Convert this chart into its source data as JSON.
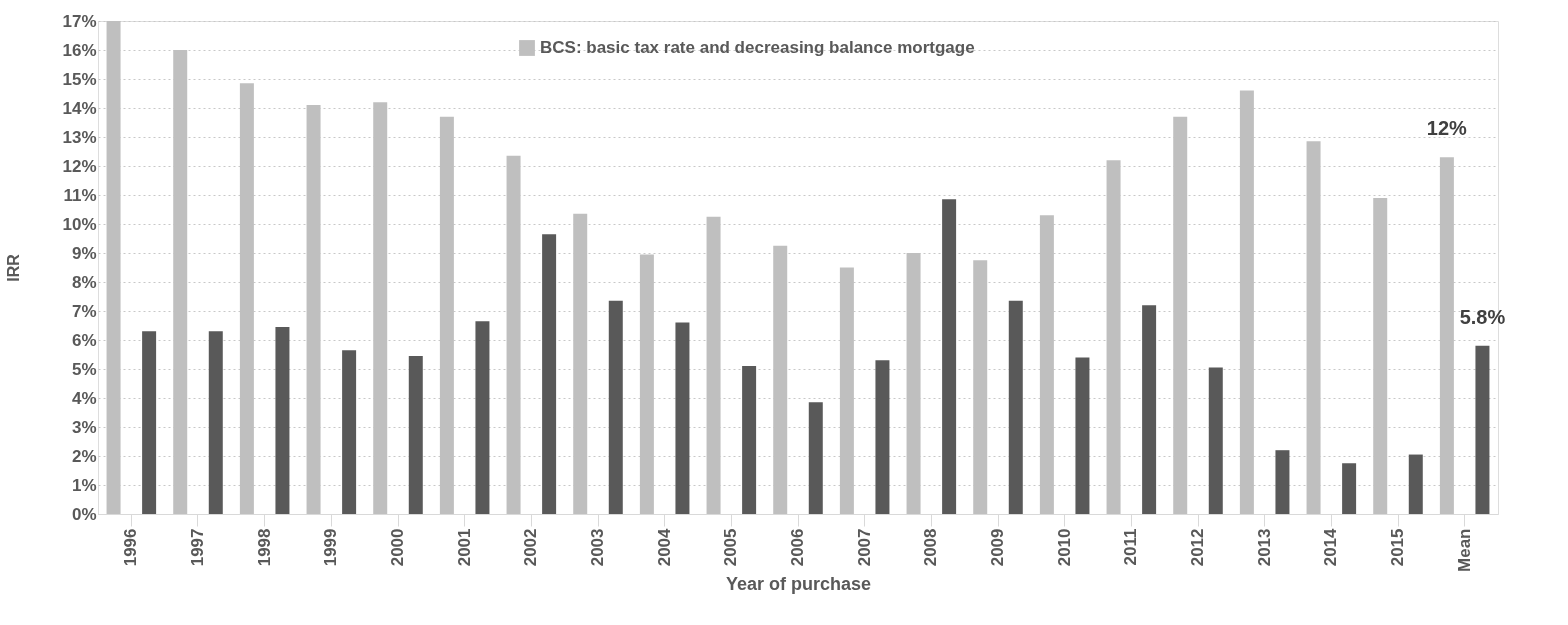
{
  "chart_data": {
    "type": "bar",
    "xlabel": "Year of purchase",
    "ylabel": "IRR",
    "categories": [
      "1996",
      "1997",
      "1998",
      "1999",
      "2000",
      "2001",
      "2002",
      "2003",
      "2004",
      "2005",
      "2006",
      "2007",
      "2008",
      "2009",
      "2010",
      "2011",
      "2012",
      "2013",
      "2014",
      "2015",
      "Mean"
    ],
    "series": [
      {
        "name": "BCS: basic tax rate and decreasing balance mortgage",
        "color": "#bfbfbf",
        "values": [
          17.0,
          16.0,
          14.85,
          14.1,
          14.2,
          13.7,
          12.35,
          10.35,
          8.95,
          10.25,
          9.25,
          8.5,
          9.0,
          8.75,
          10.3,
          12.2,
          13.7,
          14.6,
          12.85,
          10.9,
          12.3
        ],
        "value_labels": [
          null,
          null,
          null,
          null,
          null,
          null,
          null,
          null,
          null,
          null,
          null,
          null,
          null,
          null,
          null,
          null,
          null,
          null,
          null,
          null,
          "12%"
        ]
      },
      {
        "color": "#595959",
        "values": [
          6.3,
          6.3,
          6.45,
          5.65,
          5.45,
          6.65,
          9.65,
          7.35,
          6.6,
          5.1,
          3.85,
          5.3,
          10.85,
          7.35,
          5.4,
          7.2,
          5.05,
          2.2,
          1.75,
          2.05,
          5.8
        ],
        "value_labels": [
          null,
          null,
          null,
          null,
          null,
          null,
          null,
          null,
          null,
          null,
          null,
          null,
          null,
          null,
          null,
          null,
          null,
          null,
          null,
          null,
          "5.8%"
        ]
      }
    ],
    "ylim": [
      0,
      17
    ],
    "yticks": [
      {
        "value": 0,
        "label": "0%"
      },
      {
        "value": 1,
        "label": "1%"
      },
      {
        "value": 2,
        "label": "2%"
      },
      {
        "value": 3,
        "label": "3%"
      },
      {
        "value": 4,
        "label": "4%"
      },
      {
        "value": 5,
        "label": "5%"
      },
      {
        "value": 6,
        "label": "6%"
      },
      {
        "value": 7,
        "label": "7%"
      },
      {
        "value": 8,
        "label": "8%"
      },
      {
        "value": 9,
        "label": "9%"
      },
      {
        "value": 10,
        "label": "10%"
      },
      {
        "value": 11,
        "label": "11%"
      },
      {
        "value": 12,
        "label": "12%"
      },
      {
        "value": 13,
        "label": "13%"
      },
      {
        "value": 14,
        "label": "14%"
      },
      {
        "value": 15,
        "label": "15%"
      },
      {
        "value": 16,
        "label": "16%"
      },
      {
        "value": 17,
        "label": "17%"
      }
    ],
    "grid": "y",
    "legend": "top"
  }
}
